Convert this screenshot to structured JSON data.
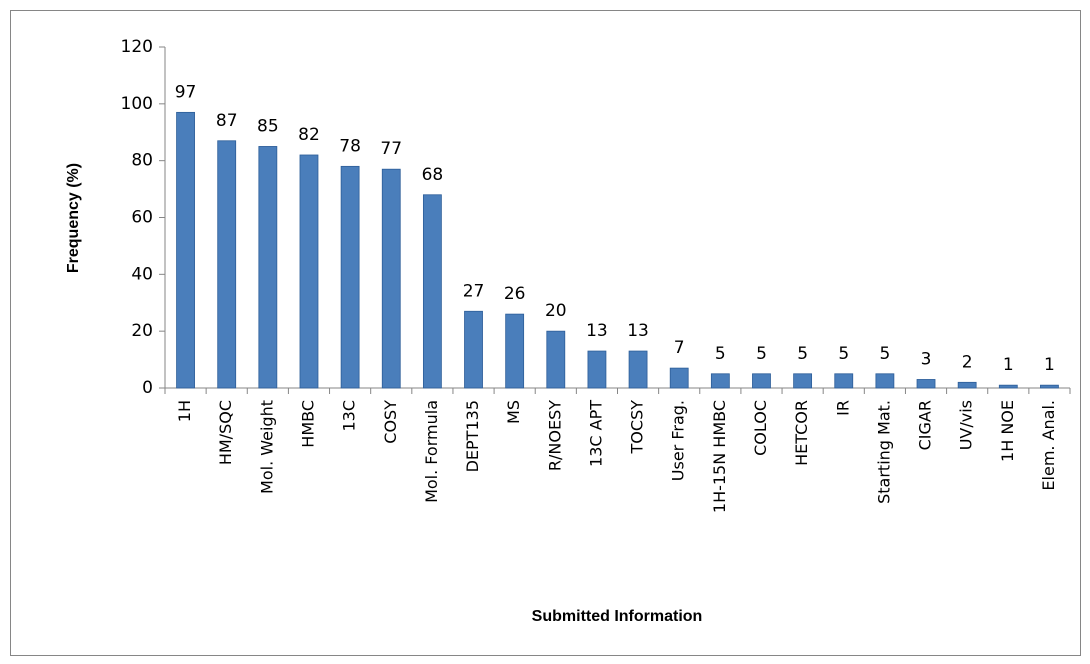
{
  "chart_data": {
    "type": "bar",
    "x_label": "Submitted Information",
    "y_label": "Frequency (%)",
    "categories": [
      "1H",
      "HM/SQC",
      "Mol. Weight",
      "HMBC",
      "13C",
      "COSY",
      "Mol. Formula",
      "DEPT135",
      "MS",
      "R/NOESY",
      "13C APT",
      "TOCSY",
      "User Frag.",
      "1H-15N HMBC",
      "COLOC",
      "HETCOR",
      "IR",
      "Starting Mat.",
      "CIGAR",
      "UV/vis",
      "1H NOE",
      "Elem. Anal."
    ],
    "values": [
      97,
      87,
      85,
      82,
      78,
      77,
      68,
      27,
      26,
      20,
      13,
      13,
      7,
      5,
      5,
      5,
      5,
      5,
      3,
      2,
      1,
      1
    ],
    "color": "#4a7ebb",
    "ylim": [
      0,
      120
    ],
    "yticks": [
      0,
      20,
      40,
      60,
      80,
      100,
      120
    ],
    "grid": false
  }
}
